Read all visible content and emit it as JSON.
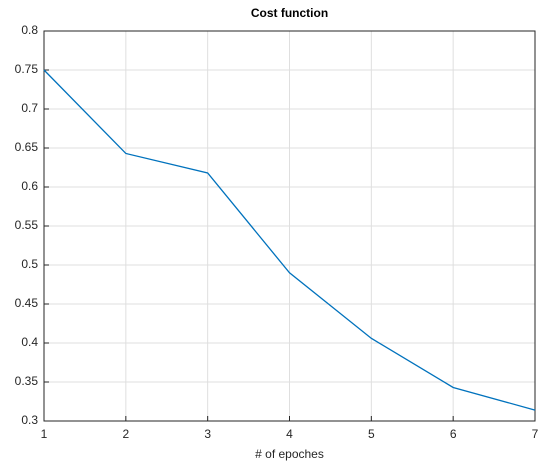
{
  "chart_data": {
    "type": "line",
    "title": "Cost function",
    "x_label": "# of epoches",
    "x": [
      1,
      2,
      3,
      4,
      5,
      6,
      7
    ],
    "series": [
      {
        "color": "#0072bd",
        "values": [
          0.75,
          0.643,
          0.618,
          0.49,
          0.406,
          0.343,
          0.314
        ]
      }
    ],
    "xlim": [
      1,
      7
    ],
    "xticks": [
      1,
      2,
      3,
      4,
      5,
      6,
      7
    ],
    "ylim": [
      0.3,
      0.8
    ],
    "yticks": [
      0.3,
      0.35,
      0.4,
      0.45,
      0.5,
      0.55,
      0.6,
      0.65,
      0.7,
      0.75,
      0.8
    ],
    "grid": true
  }
}
